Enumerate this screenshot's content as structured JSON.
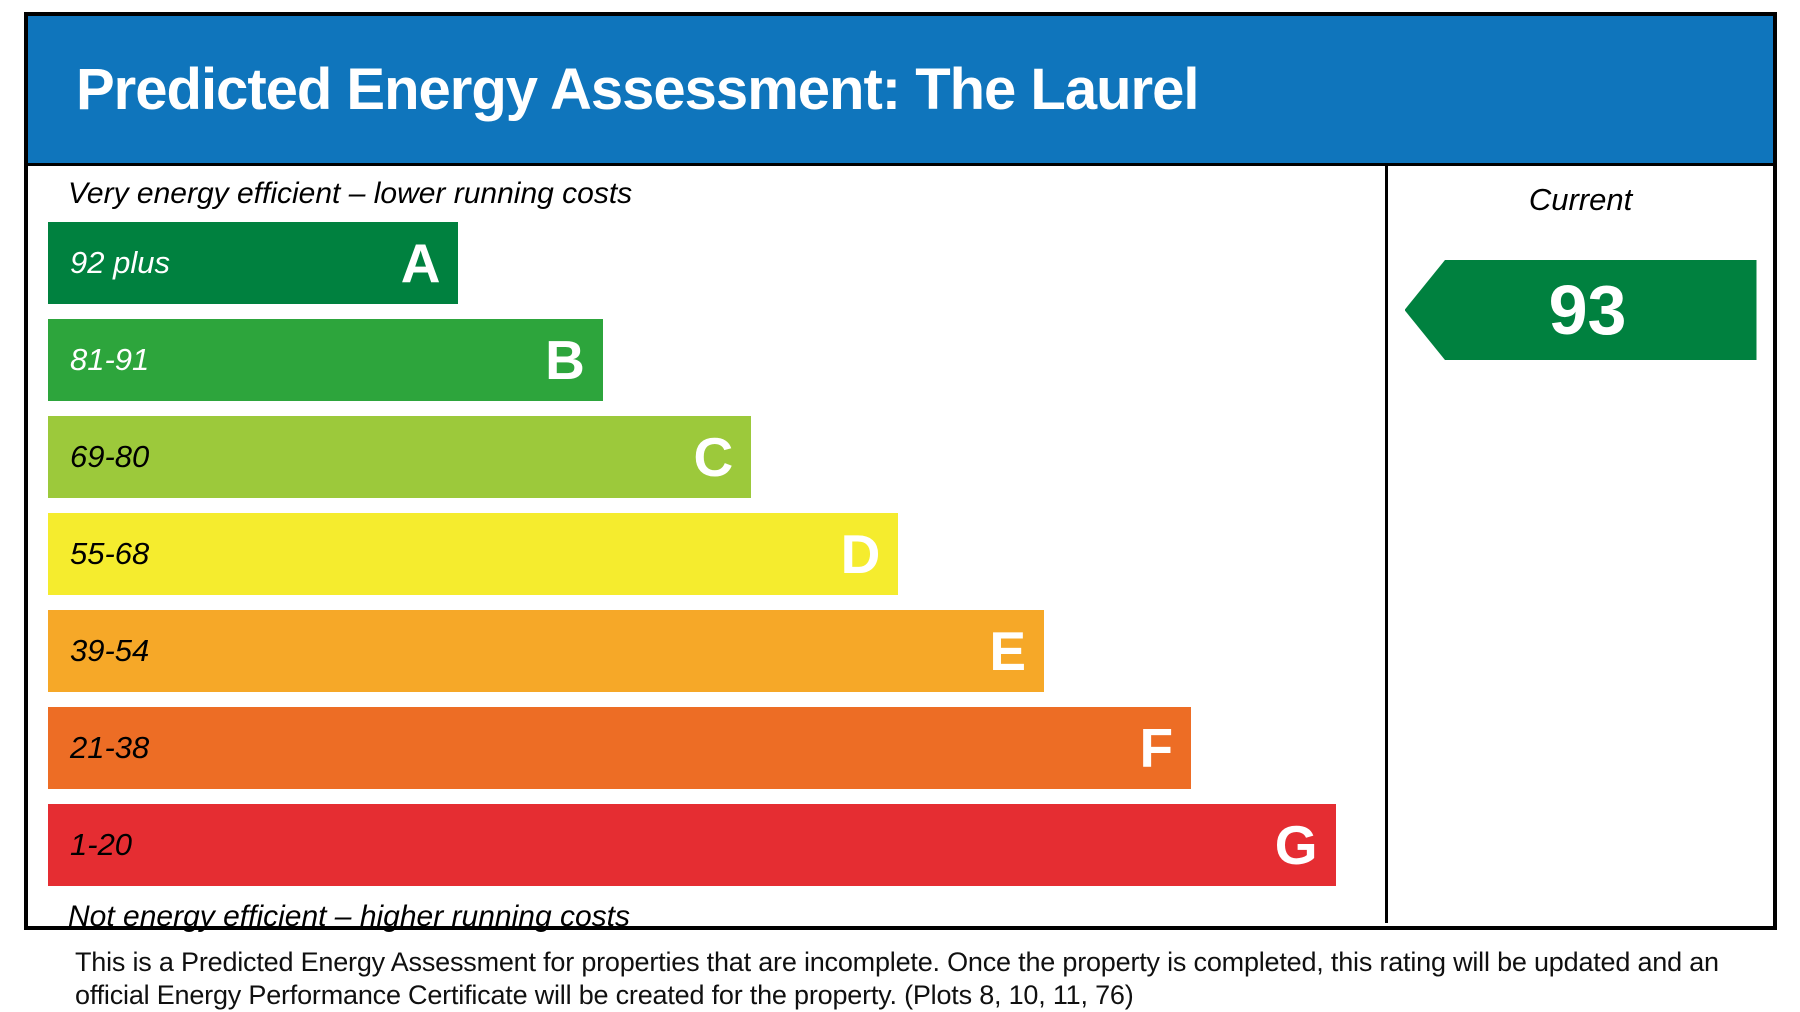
{
  "header": {
    "title": "Predicted Energy Assessment: The Laurel",
    "background_color": "#0F75BC",
    "text_color": "#ffffff"
  },
  "chart_data": {
    "type": "bar",
    "title": "Predicted Energy Assessment: The Laurel",
    "top_label": "Very energy efficient – lower running costs",
    "bottom_label": "Not energy efficient – higher running costs",
    "current_column_label": "Current",
    "current_value": 93,
    "current_band": "A",
    "current_color": "#00813F",
    "bands": [
      {
        "letter": "A",
        "range": "92 plus",
        "color": "#00813F",
        "range_text_color": "#ffffff",
        "width_pct": 30.7
      },
      {
        "letter": "B",
        "range": "81-91",
        "color": "#2DA53C",
        "range_text_color": "#ffffff",
        "width_pct": 41.5
      },
      {
        "letter": "C",
        "range": "69-80",
        "color": "#9CC93B",
        "range_text_color": "#000000",
        "width_pct": 52.6
      },
      {
        "letter": "D",
        "range": "55-68",
        "color": "#F5EC2E",
        "range_text_color": "#000000",
        "width_pct": 63.6
      },
      {
        "letter": "E",
        "range": "39-54",
        "color": "#F6A828",
        "range_text_color": "#000000",
        "width_pct": 74.5
      },
      {
        "letter": "F",
        "range": "21-38",
        "color": "#ED6D25",
        "range_text_color": "#000000",
        "width_pct": 85.5
      },
      {
        "letter": "G",
        "range": "1-20",
        "color": "#E52D32",
        "range_text_color": "#000000",
        "width_pct": 96.3
      }
    ]
  },
  "footer": {
    "text": "This is a Predicted Energy Assessment for properties that are incomplete. Once the property is completed, this rating will be updated and an official Energy Performance Certificate will be created for the property. (Plots 8, 10, 11, 76)"
  }
}
